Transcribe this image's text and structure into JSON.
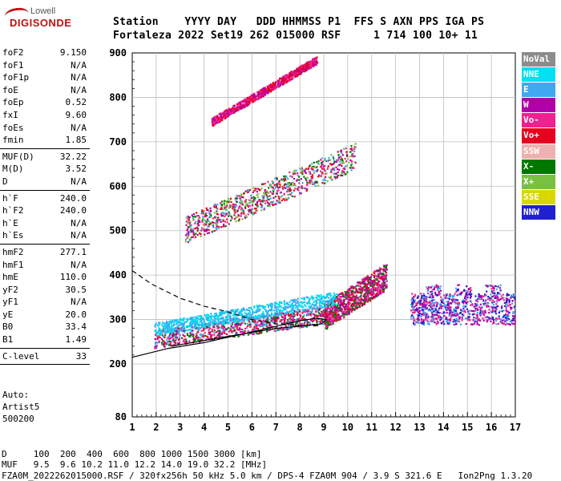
{
  "logo": {
    "line1": "Lowell",
    "line2": "DIGISONDE"
  },
  "header": {
    "line1": "Station    YYYY DAY   DDD HHMMSS P1  FFS S AXN PPS IGA PS",
    "line2": "Fortaleza 2022 Set19 262 015000 RSF     1 714 100 10+ 11"
  },
  "params": [
    {
      "label": "foF2",
      "value": "9.150"
    },
    {
      "label": "foF1",
      "value": "N/A"
    },
    {
      "label": "foF1p",
      "value": "N/A"
    },
    {
      "label": "foE",
      "value": "N/A"
    },
    {
      "label": "foEp",
      "value": "0.52"
    },
    {
      "label": "fxI",
      "value": "9.60"
    },
    {
      "label": "foEs",
      "value": "N/A"
    },
    {
      "label": "fmin",
      "value": "1.85"
    },
    {
      "sep": true
    },
    {
      "label": "MUF(D)",
      "value": "32.22"
    },
    {
      "label": "M(D)",
      "value": "3.52"
    },
    {
      "label": "D",
      "value": "N/A"
    },
    {
      "sep": true
    },
    {
      "label": "h`F",
      "value": "240.0"
    },
    {
      "label": "h`F2",
      "value": "240.0"
    },
    {
      "label": "h`E",
      "value": "N/A"
    },
    {
      "label": "h`Es",
      "value": "N/A"
    },
    {
      "sep": true
    },
    {
      "label": "hmF2",
      "value": "277.1"
    },
    {
      "label": "hmF1",
      "value": "N/A"
    },
    {
      "label": "hmE",
      "value": "110.0"
    },
    {
      "label": "yF2",
      "value": "30.5"
    },
    {
      "label": "yF1",
      "value": "N/A"
    },
    {
      "label": "yE",
      "value": "20.0"
    },
    {
      "label": "B0",
      "value": "33.4"
    },
    {
      "label": "B1",
      "value": "1.49"
    },
    {
      "sep": true
    },
    {
      "label": "C-level",
      "value": "33"
    },
    {
      "sep": true
    }
  ],
  "auto": {
    "line1": "Auto:",
    "line2": "Artist5",
    "line3": "500200"
  },
  "legend": [
    {
      "label": "NoVal",
      "color": "#8c8c8c"
    },
    {
      "label": "NNE",
      "color": "#00e0f0"
    },
    {
      "label": "E",
      "color": "#40a8f0"
    },
    {
      "label": "W",
      "color": "#b000a8"
    },
    {
      "label": "Vo-",
      "color": "#f02090"
    },
    {
      "label": "Vo+",
      "color": "#e80020"
    },
    {
      "label": "SSW",
      "color": "#f0b0b0"
    },
    {
      "label": "X-",
      "color": "#007800"
    },
    {
      "label": "X+",
      "color": "#78c040"
    },
    {
      "label": "SSE",
      "color": "#d8d800"
    },
    {
      "label": "NNW",
      "color": "#2020d0"
    }
  ],
  "footer": {
    "line1": "D     100  200  400  600  800 1000 1500 3000 [km]",
    "line2": "MUF   9.5  9.6 10.2 11.0 12.2 14.0 19.0 32.2 [MHz]",
    "line3": "FZA0M_2022262015000.RSF / 320fx256h 50 kHz 5.0 km / DPS-4 FZA0M 904 / 3.9 S 321.6 E   Ion2Png 1.3.20"
  },
  "chart_data": {
    "type": "scatter",
    "x_ticks": [
      "1",
      "2",
      "3",
      "4",
      "5",
      "6",
      "7",
      "8",
      "9",
      "10",
      "11",
      "12",
      "13",
      "14",
      "15",
      "16",
      "17"
    ],
    "y_ticks": [
      "80",
      "200",
      "300",
      "400",
      "500",
      "600",
      "700",
      "800",
      "900"
    ],
    "xlim": [
      1,
      17
    ],
    "ylim": [
      80,
      900
    ],
    "grid": true,
    "profile_solid": [
      [
        1.0,
        215
      ],
      [
        2.5,
        235
      ],
      [
        4,
        248
      ],
      [
        5,
        260
      ],
      [
        6,
        272
      ],
      [
        7,
        285
      ],
      [
        8,
        297
      ],
      [
        8.7,
        303
      ],
      [
        9.1,
        300
      ],
      [
        8.9,
        290
      ],
      [
        7,
        280
      ],
      [
        5,
        262
      ],
      [
        3.5,
        248
      ],
      [
        2.6,
        240
      ]
    ],
    "profile_dashed": [
      [
        1.0,
        410
      ],
      [
        1.8,
        380
      ],
      [
        3,
        348
      ],
      [
        4,
        330
      ],
      [
        5,
        317
      ],
      [
        6,
        300
      ],
      [
        7,
        290
      ],
      [
        8,
        287
      ],
      [
        8.8,
        286
      ]
    ],
    "trace_clusters": [
      {
        "x0": 1.9,
        "x1": 9.1,
        "y0_start": 245,
        "y0_end": 300,
        "thickness": 40,
        "colors": [
          "#f02090",
          "#b000a8",
          "#40a8f0",
          "#007800",
          "#e80020"
        ]
      },
      {
        "x0": 9.0,
        "x1": 11.6,
        "y0_start": 290,
        "y0_end": 380,
        "thickness": 60,
        "colors": [
          "#f02090",
          "#e80020",
          "#007800",
          "#b000a8"
        ]
      },
      {
        "x0": 1.9,
        "x1": 9.5,
        "y0_start": 270,
        "y0_end": 340,
        "thickness": 30,
        "colors": [
          "#40a8f0",
          "#00e0f0"
        ]
      },
      {
        "x0": 3.2,
        "x1": 10.3,
        "y0_start": 485,
        "y0_end": 650,
        "thickness": 60,
        "colors": [
          "#f02090",
          "#b000a8",
          "#40a8f0",
          "#007800",
          "#78c040",
          "#e80020"
        ]
      },
      {
        "x0": 4.3,
        "x1": 8.7,
        "y0_start": 740,
        "y0_end": 880,
        "thickness": 18,
        "colors": [
          "#f02090",
          "#b000a8",
          "#e80020"
        ]
      },
      {
        "x0": 12.6,
        "x1": 17,
        "y0_start": 300,
        "y0_end": 300,
        "thickness": 100,
        "colors": [
          "#2020d0",
          "#40a8f0",
          "#b000a8",
          "#f02090"
        ]
      }
    ]
  }
}
